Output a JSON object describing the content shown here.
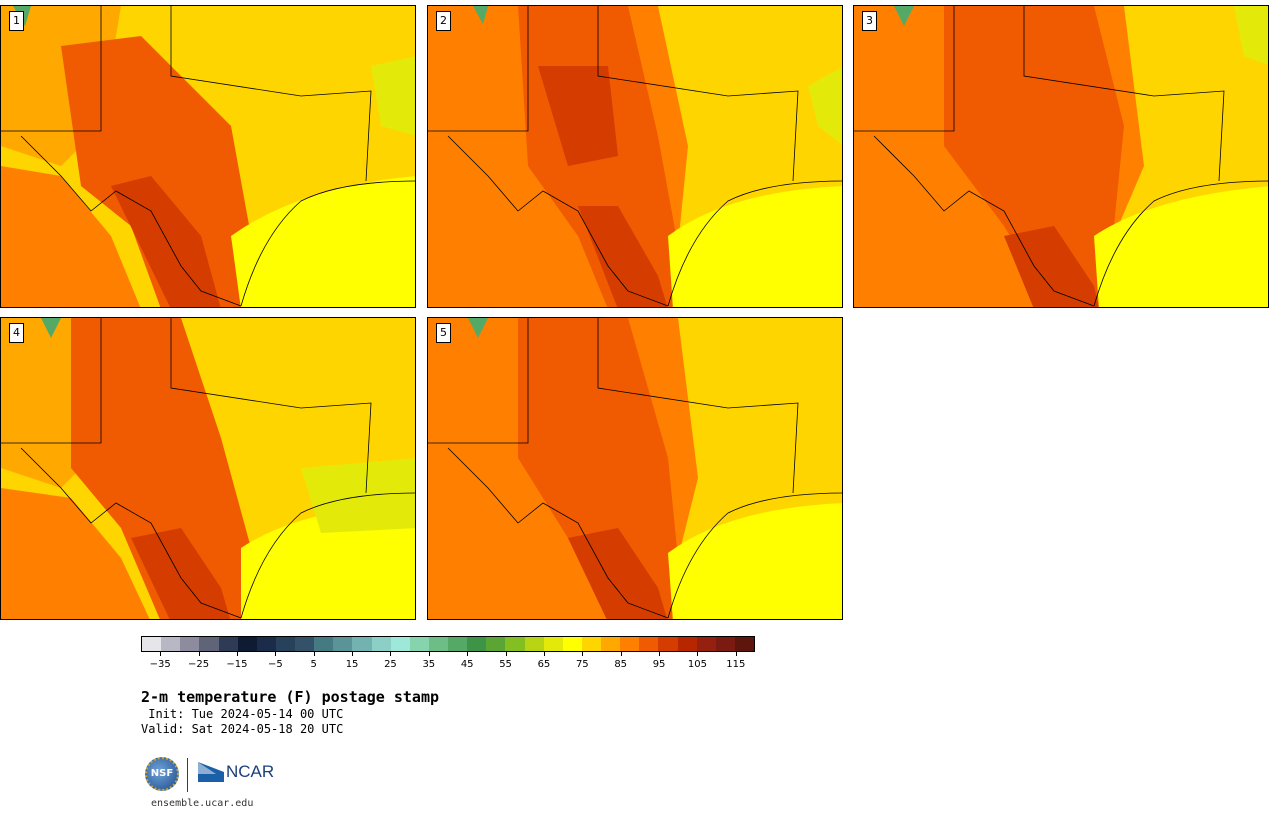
{
  "panels": [
    {
      "num": "1"
    },
    {
      "num": "2"
    },
    {
      "num": "3"
    },
    {
      "num": "4"
    },
    {
      "num": "5"
    }
  ],
  "colorbar": {
    "colors": [
      "#e6e6ea",
      "#b8b8c4",
      "#8c8c9e",
      "#5f6479",
      "#2f3a56",
      "#0f1a33",
      "#1a2c4a",
      "#27415a",
      "#33526a",
      "#467a82",
      "#5a9498",
      "#72b2b0",
      "#8ccfc6",
      "#9de8d8",
      "#86d4ad",
      "#6cbe86",
      "#53a965",
      "#3e9446",
      "#5aa534",
      "#84bf22",
      "#b9d412",
      "#e3ea0a",
      "#ffff00",
      "#ffd500",
      "#ffa800",
      "#ff8000",
      "#f05a00",
      "#d43c00",
      "#b82600",
      "#962010",
      "#7a1a10",
      "#5e160c"
    ],
    "tick_labels": [
      "−35",
      "−25",
      "−15",
      "−5",
      "5",
      "15",
      "25",
      "35",
      "45",
      "55",
      "65",
      "75",
      "85",
      "95",
      "105",
      "115"
    ]
  },
  "title": "2-m temperature (F) postage stamp",
  "init": " Init: Tue 2024-05-14 00 UTC",
  "valid": "Valid: Sat 2024-05-18 20 UTC",
  "logo": {
    "nsf": "NSF",
    "ncar": "NCAR"
  },
  "url": "ensemble.ucar.edu"
}
